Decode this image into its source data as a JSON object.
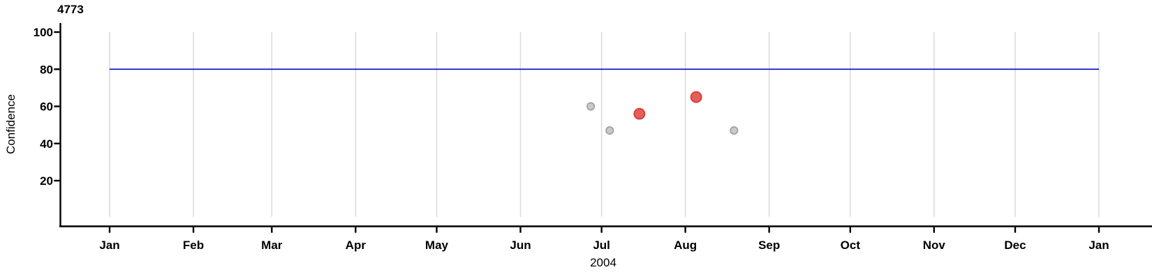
{
  "chart_data": {
    "type": "scatter",
    "title": "4773",
    "ylabel": "Confidence",
    "xlabel": "2004",
    "x_axis": {
      "unit": "days-of-year-2004",
      "total_days": 366,
      "ticks": [
        {
          "label": "Jan",
          "day": 0
        },
        {
          "label": "Feb",
          "day": 31
        },
        {
          "label": "Mar",
          "day": 60
        },
        {
          "label": "Apr",
          "day": 91
        },
        {
          "label": "May",
          "day": 121
        },
        {
          "label": "Jun",
          "day": 152
        },
        {
          "label": "Jul",
          "day": 182
        },
        {
          "label": "Aug",
          "day": 213
        },
        {
          "label": "Sep",
          "day": 244
        },
        {
          "label": "Oct",
          "day": 274
        },
        {
          "label": "Nov",
          "day": 305
        },
        {
          "label": "Dec",
          "day": 335
        },
        {
          "label": "Jan",
          "day": 366
        }
      ]
    },
    "y_axis": {
      "ticks": [
        100,
        80,
        60,
        40,
        20
      ],
      "range_shown": [
        0,
        105
      ]
    },
    "grid": {
      "style": "vertical-month-lines",
      "color": "#d9d9d9"
    },
    "reference_line": {
      "value": 80,
      "start_day": 0,
      "end_day": 366,
      "color": "#1414cc"
    },
    "series": [
      {
        "name": "regular-points",
        "fill": "#c9c9c9",
        "stroke": "#a3a3a3",
        "radius": 5.2,
        "points": [
          {
            "date": "Jun 27",
            "day": 178,
            "value": 60
          },
          {
            "date": "Jul 4",
            "day": 185,
            "value": 47
          },
          {
            "date": "Aug 19",
            "day": 231,
            "value": 47
          }
        ]
      },
      {
        "name": "highlighted-points",
        "fill": "#e2605c",
        "stroke": "#e03434",
        "radius": 7.5,
        "points": [
          {
            "date": "Jul 15",
            "day": 196,
            "value": 56
          },
          {
            "date": "Aug 5",
            "day": 217,
            "value": 65
          }
        ]
      }
    ],
    "colors": {
      "axis": "#000000",
      "text": "#000000",
      "background": "#ffffff"
    }
  }
}
